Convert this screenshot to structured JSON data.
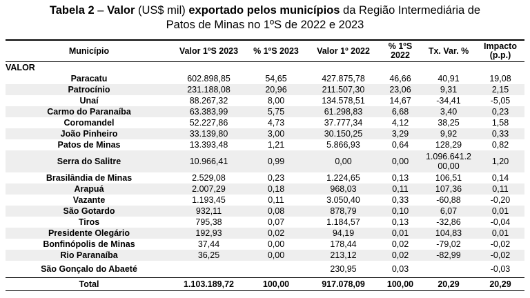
{
  "title": {
    "part1": "Tabela 2",
    "dash": " – ",
    "part2": "Valor",
    "part3": " (US$ mil) ",
    "part4": "exportado pelos municípios",
    "part5": " da Região Intermediária de",
    "line2": "Patos de Minas no 1ºS de 2022 e 2023"
  },
  "headers": [
    "Município",
    "Valor 1ºS 2023",
    "% 1ºS 2023",
    "Valor 1º 2022",
    "% 1ºS 2022",
    "Tx. Var. %",
    "Impacto (p.p.)"
  ],
  "section": "VALOR",
  "rows": [
    [
      "Paracatu",
      "602.898,85",
      "54,65",
      "427.875,78",
      "46,66",
      "40,91",
      "19,08"
    ],
    [
      "Patrocínio",
      "231.188,08",
      "20,96",
      "211.507,30",
      "23,06",
      "9,31",
      "2,15"
    ],
    [
      "Unaí",
      "88.267,32",
      "8,00",
      "134.578,51",
      "14,67",
      "-34,41",
      "-5,05"
    ],
    [
      "Carmo do Paranaíba",
      "63.383,99",
      "5,75",
      "61.298,83",
      "6,68",
      "3,40",
      "0,23"
    ],
    [
      "Coromandel",
      "52.227,86",
      "4,73",
      "37.777,34",
      "4,12",
      "38,25",
      "1,58"
    ],
    [
      "João Pinheiro",
      "33.139,80",
      "3,00",
      "30.150,25",
      "3,29",
      "9,92",
      "0,33"
    ],
    [
      "Patos de Minas",
      "13.393,48",
      "1,21",
      "5.866,93",
      "0,64",
      "128,29",
      "0,82"
    ],
    [
      "Serra do Salitre",
      "10.966,41",
      "0,99",
      "0,00",
      "0,00",
      "1.096.641.200,00",
      "1,20"
    ],
    [
      "Brasilândia de Minas",
      "2.529,08",
      "0,23",
      "1.224,65",
      "0,13",
      "106,51",
      "0,14"
    ],
    [
      "Arapuá",
      "2.007,29",
      "0,18",
      "968,03",
      "0,11",
      "107,36",
      "0,11"
    ],
    [
      "Vazante",
      "1.193,45",
      "0,11",
      "3.050,40",
      "0,33",
      "-60,88",
      "-0,20"
    ],
    [
      "São Gotardo",
      "932,11",
      "0,08",
      "878,79",
      "0,10",
      "6,07",
      "0,01"
    ],
    [
      "Tiros",
      "795,38",
      "0,07",
      "1.184,57",
      "0,13",
      "-32,86",
      "-0,04"
    ],
    [
      "Presidente Olegário",
      "192,93",
      "0,02",
      "94,19",
      "0,01",
      "104,83",
      "0,01"
    ],
    [
      "Bonfinópolis de Minas",
      "37,44",
      "0,00",
      "178,44",
      "0,02",
      "-79,02",
      "-0,02"
    ],
    [
      "Rio Paranaíba",
      "36,25",
      "0,00",
      "213,12",
      "0,02",
      "-82,99",
      "-0,02"
    ],
    [
      "São Gonçalo do Abaeté",
      "",
      "",
      "230,95",
      "0,03",
      "",
      "-0,03"
    ]
  ],
  "total": [
    "Total",
    "1.103.189,72",
    "100,00",
    "917.078,09",
    "100,00",
    "20,29",
    "20,29"
  ]
}
